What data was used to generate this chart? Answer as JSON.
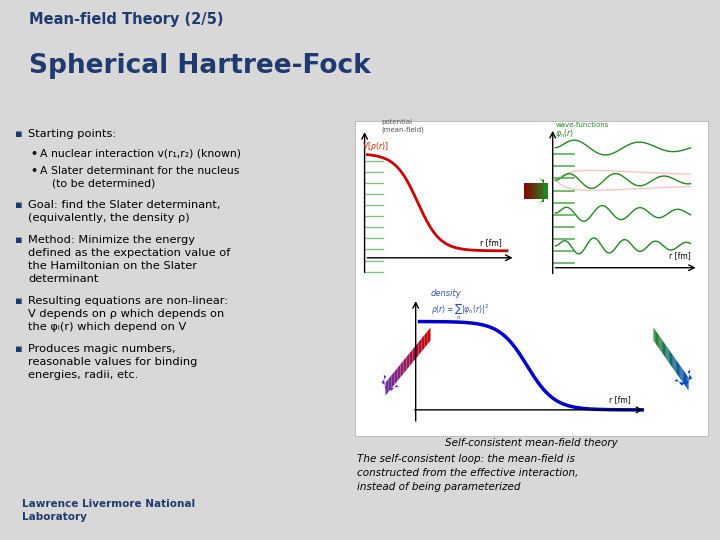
{
  "bg_color": "#d8d8d8",
  "header_bg": "#e4e4e8",
  "footer_bg": "#cccccc",
  "title_small": "Mean-field Theory (2/5)",
  "title_large": "Spherical Hartree-Fock",
  "title_color": "#1e3a6e",
  "bullet_sq_color": "#1e3a6e",
  "caption": "The self-consistent loop: the mean-field is\nconstructed from the effective interaction,\ninstead of being parameterized",
  "footer_text": "Lawrence Livermore National\nLaboratory",
  "footer_color": "#1e3a6e",
  "self_consistent_label": "Self-consistent mean-field theory"
}
